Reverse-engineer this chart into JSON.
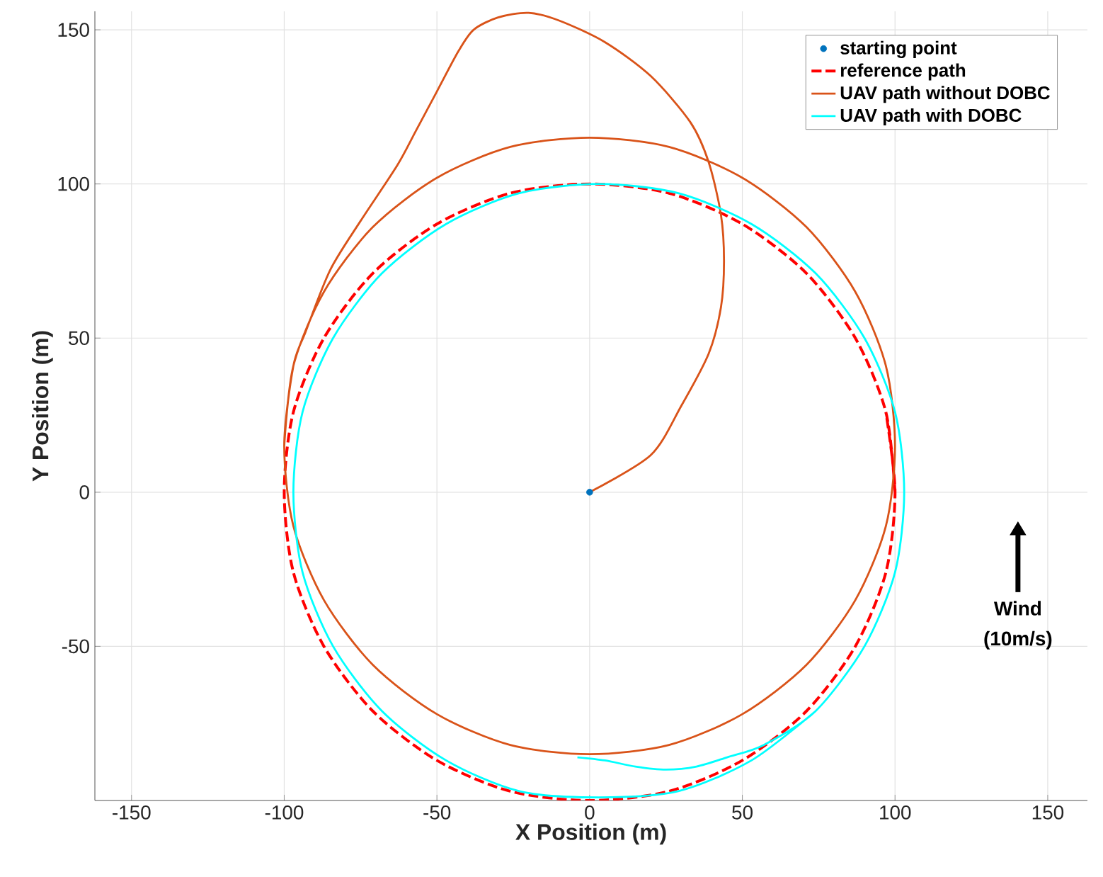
{
  "chart_data": {
    "type": "line",
    "xlabel": "X Position (m)",
    "ylabel": "Y Position (m)",
    "xlim": [
      -162,
      163
    ],
    "ylim": [
      -100,
      156
    ],
    "xticks": [
      -150,
      -100,
      -50,
      0,
      50,
      100,
      150
    ],
    "yticks": [
      -50,
      0,
      50,
      100,
      150
    ],
    "grid": true,
    "legend": "top right",
    "annotations": [
      "Wind",
      "(10m/s)"
    ],
    "series": [
      {
        "name": "starting point",
        "type": "scatter",
        "marker": "circle",
        "color": "#0072bd",
        "x": [
          0
        ],
        "values": [
          0
        ]
      },
      {
        "name": "reference path",
        "line_style": "dashed",
        "color": "#ff0000",
        "x": [
          100,
          97,
          87,
          71,
          50,
          26,
          0,
          -26,
          -50,
          -71,
          -87,
          -97,
          -100,
          -97,
          -87,
          -71,
          -50,
          -26,
          0,
          26,
          50,
          71,
          87,
          97,
          100,
          97
        ],
        "values": [
          0,
          26,
          50,
          71,
          87,
          97,
          100,
          97,
          87,
          71,
          50,
          26,
          0,
          -26,
          -50,
          -71,
          -87,
          -97,
          -100,
          -97,
          -87,
          -71,
          -50,
          -26,
          0,
          26
        ]
      },
      {
        "name": "UAV path without DOBC",
        "line_style": "solid",
        "color": "#d95319",
        "x": [
          0,
          20,
          30,
          39,
          43,
          44,
          43,
          39,
          33,
          20,
          5,
          -10,
          -20,
          -30,
          -38,
          -43,
          -50,
          -57,
          -63,
          -75,
          -85,
          -93,
          -97,
          -100,
          -97,
          -87,
          -71,
          -50,
          -26,
          0,
          26,
          50,
          71,
          87,
          97,
          100,
          97,
          87,
          71,
          50,
          26,
          0,
          -26,
          -50,
          -71,
          -87,
          -97,
          -100
        ],
        "values": [
          0,
          12,
          28,
          45,
          60,
          75,
          90,
          107,
          120,
          135,
          146,
          153,
          155.5,
          154,
          150,
          143,
          130,
          117,
          106,
          88,
          72,
          52,
          41,
          15,
          -11,
          -35,
          -56,
          -72,
          -82,
          -85,
          -82,
          -72,
          -56,
          -35,
          -11,
          15,
          41,
          65,
          86,
          102,
          112,
          115,
          112,
          102,
          86,
          65,
          41,
          15
        ]
      },
      {
        "name": "UAV path with DOBC",
        "line_style": "solid",
        "color": "#00ffff",
        "x": [
          -4,
          5,
          15,
          25,
          35,
          45,
          57,
          74,
          90,
          100,
          103,
          100,
          90,
          74,
          53,
          29,
          3,
          -23,
          -47,
          -68,
          -84,
          -94,
          -97,
          -94,
          -84,
          -68,
          -47,
          -23,
          3,
          29,
          53,
          74
        ],
        "values": [
          -86,
          -87,
          -89,
          -90,
          -89,
          -86,
          -82,
          -71,
          -50,
          -26,
          0,
          26,
          50,
          71,
          87,
          97,
          100,
          97,
          87,
          71,
          50,
          26,
          0,
          -26,
          -50,
          -71,
          -87,
          -97,
          -99,
          -97,
          -87,
          -71
        ]
      }
    ]
  }
}
